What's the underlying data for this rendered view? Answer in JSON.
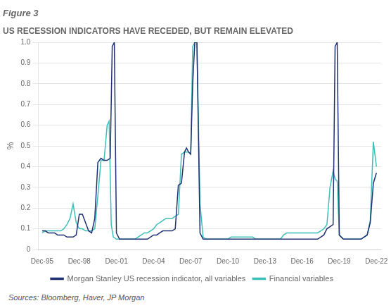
{
  "chart_data": {
    "type": "line",
    "title": "Figure 3",
    "subtitle": "US RECESSION INDICATORS HAVE RECEDED, BUT REMAIN ELEVATED",
    "y_label": "%",
    "source": "Sources: Bloomberg, Haver, JP Morgan",
    "xlim": [
      1995.6,
      2023.3
    ],
    "xticks": [
      {
        "value": 1995.92,
        "label": "Dec-95"
      },
      {
        "value": 1998.92,
        "label": "Dec-98"
      },
      {
        "value": 2001.92,
        "label": "Dec-01"
      },
      {
        "value": 2004.92,
        "label": "Dec-04"
      },
      {
        "value": 2007.92,
        "label": "Dec-07"
      },
      {
        "value": 2010.92,
        "label": "Dec-10"
      },
      {
        "value": 2013.92,
        "label": "Dec-13"
      },
      {
        "value": 2016.92,
        "label": "Dec-16"
      },
      {
        "value": 2019.92,
        "label": "Dec-19"
      },
      {
        "value": 2022.92,
        "label": "Dec-22"
      }
    ],
    "ylim": [
      0,
      1.0
    ],
    "yticks": [
      0,
      0.1,
      0.2,
      0.3,
      0.4,
      0.5,
      0.6,
      0.7,
      0.8,
      0.9,
      {
        "value": 1.0,
        "label": "1.0"
      }
    ],
    "grid": "y",
    "legend": "bottom",
    "series": [
      {
        "name": "Morgan Stanley US recession indicator, all variables",
        "color": "#1f3172",
        "x": [
          1995.92,
          1996.17,
          1996.42,
          1996.67,
          1996.92,
          1997.17,
          1997.42,
          1997.67,
          1997.92,
          1998.17,
          1998.42,
          1998.67,
          1998.92,
          1999.17,
          1999.42,
          1999.67,
          1999.92,
          2000.17,
          2000.42,
          2000.67,
          2000.92,
          2001.17,
          2001.42,
          2001.58,
          2001.75,
          2001.92,
          2002.17,
          2002.42,
          2002.67,
          2002.92,
          2003.17,
          2003.42,
          2003.67,
          2003.92,
          2004.17,
          2004.42,
          2004.67,
          2004.92,
          2005.17,
          2005.42,
          2005.67,
          2005.92,
          2006.17,
          2006.42,
          2006.67,
          2006.92,
          2007.17,
          2007.42,
          2007.58,
          2007.75,
          2007.92,
          2008.08,
          2008.25,
          2008.42,
          2008.67,
          2008.92,
          2009.17,
          2009.42,
          2009.67,
          2009.92,
          2010.17,
          2010.42,
          2010.67,
          2010.92,
          2011.17,
          2011.42,
          2011.67,
          2011.92,
          2012.17,
          2012.42,
          2012.67,
          2012.92,
          2013.17,
          2013.42,
          2013.67,
          2013.92,
          2014.17,
          2014.42,
          2014.67,
          2014.92,
          2015.17,
          2015.42,
          2015.67,
          2015.92,
          2016.17,
          2016.42,
          2016.67,
          2016.92,
          2017.17,
          2017.42,
          2017.67,
          2017.92,
          2018.17,
          2018.42,
          2018.67,
          2018.92,
          2019.17,
          2019.42,
          2019.58,
          2019.75,
          2019.92,
          2020.08,
          2020.25,
          2020.42,
          2020.67,
          2020.92,
          2021.17,
          2021.42,
          2021.67,
          2021.92,
          2022.17,
          2022.42,
          2022.67,
          2022.92
        ],
        "values": [
          0.09,
          0.09,
          0.08,
          0.08,
          0.08,
          0.07,
          0.07,
          0.07,
          0.06,
          0.06,
          0.06,
          0.07,
          0.17,
          0.17,
          0.13,
          0.09,
          0.08,
          0.15,
          0.42,
          0.44,
          0.43,
          0.43,
          0.44,
          0.98,
          1.0,
          0.08,
          0.05,
          0.05,
          0.05,
          0.05,
          0.05,
          0.05,
          0.05,
          0.05,
          0.05,
          0.05,
          0.06,
          0.07,
          0.07,
          0.08,
          0.09,
          0.09,
          0.09,
          0.09,
          0.1,
          0.31,
          0.32,
          0.47,
          0.49,
          0.47,
          0.46,
          0.8,
          1.0,
          1.0,
          0.08,
          0.05,
          0.05,
          0.05,
          0.05,
          0.05,
          0.05,
          0.05,
          0.05,
          0.05,
          0.05,
          0.05,
          0.05,
          0.05,
          0.05,
          0.05,
          0.05,
          0.05,
          0.05,
          0.05,
          0.05,
          0.05,
          0.05,
          0.05,
          0.05,
          0.05,
          0.05,
          0.05,
          0.05,
          0.05,
          0.05,
          0.05,
          0.05,
          0.05,
          0.05,
          0.05,
          0.05,
          0.05,
          0.05,
          0.06,
          0.07,
          0.1,
          0.11,
          0.12,
          0.98,
          1.0,
          0.07,
          0.06,
          0.05,
          0.05,
          0.05,
          0.05,
          0.05,
          0.05,
          0.05,
          0.06,
          0.07,
          0.13,
          0.32,
          0.37
        ]
      },
      {
        "name": "Financial variables",
        "color": "#3dbfb8",
        "x": [
          1995.92,
          1996.17,
          1996.42,
          1996.67,
          1996.92,
          1997.17,
          1997.42,
          1997.67,
          1997.92,
          1998.17,
          1998.42,
          1998.67,
          1998.92,
          1999.17,
          1999.42,
          1999.67,
          1999.92,
          2000.17,
          2000.42,
          2000.67,
          2000.92,
          2001.17,
          2001.33,
          2001.5,
          2001.67,
          2001.92,
          2002.17,
          2002.42,
          2002.67,
          2002.92,
          2003.17,
          2003.42,
          2003.67,
          2003.92,
          2004.17,
          2004.42,
          2004.67,
          2004.92,
          2005.17,
          2005.42,
          2005.67,
          2005.92,
          2006.17,
          2006.42,
          2006.67,
          2006.92,
          2007.17,
          2007.42,
          2007.58,
          2007.75,
          2007.92,
          2008.08,
          2008.25,
          2008.42,
          2008.67,
          2008.92,
          2009.17,
          2009.42,
          2009.67,
          2009.92,
          2010.17,
          2010.42,
          2010.67,
          2010.92,
          2011.17,
          2011.42,
          2011.67,
          2011.92,
          2012.17,
          2012.42,
          2012.67,
          2012.92,
          2013.17,
          2013.42,
          2013.67,
          2013.92,
          2014.17,
          2014.42,
          2014.67,
          2014.92,
          2015.17,
          2015.42,
          2015.67,
          2015.92,
          2016.17,
          2016.42,
          2016.67,
          2016.92,
          2017.17,
          2017.42,
          2017.67,
          2017.92,
          2018.17,
          2018.42,
          2018.67,
          2018.92,
          2019.17,
          2019.42,
          2019.58,
          2019.75,
          2019.92,
          2020.08,
          2020.25,
          2020.42,
          2020.67,
          2020.92,
          2021.17,
          2021.42,
          2021.67,
          2021.92,
          2022.17,
          2022.42,
          2022.67,
          2022.92
        ],
        "values": [
          0.08,
          0.09,
          0.09,
          0.09,
          0.09,
          0.09,
          0.09,
          0.1,
          0.12,
          0.15,
          0.22,
          0.13,
          0.1,
          0.1,
          0.09,
          0.09,
          0.09,
          0.1,
          0.26,
          0.43,
          0.43,
          0.6,
          0.62,
          0.12,
          0.06,
          0.05,
          0.05,
          0.05,
          0.05,
          0.05,
          0.05,
          0.05,
          0.06,
          0.07,
          0.08,
          0.08,
          0.09,
          0.1,
          0.12,
          0.13,
          0.14,
          0.15,
          0.15,
          0.15,
          0.16,
          0.17,
          0.46,
          0.47,
          0.47,
          0.47,
          0.46,
          0.98,
          1.0,
          1.0,
          0.22,
          0.06,
          0.05,
          0.05,
          0.05,
          0.05,
          0.05,
          0.05,
          0.05,
          0.05,
          0.06,
          0.06,
          0.06,
          0.06,
          0.06,
          0.06,
          0.06,
          0.06,
          0.05,
          0.05,
          0.05,
          0.05,
          0.05,
          0.05,
          0.05,
          0.05,
          0.05,
          0.07,
          0.08,
          0.08,
          0.08,
          0.08,
          0.08,
          0.08,
          0.08,
          0.08,
          0.08,
          0.08,
          0.08,
          0.09,
          0.1,
          0.12,
          0.3,
          0.38,
          0.34,
          0.33,
          0.07,
          0.06,
          0.05,
          0.05,
          0.05,
          0.05,
          0.05,
          0.05,
          0.05,
          0.06,
          0.07,
          0.14,
          0.52,
          0.4
        ]
      }
    ]
  }
}
